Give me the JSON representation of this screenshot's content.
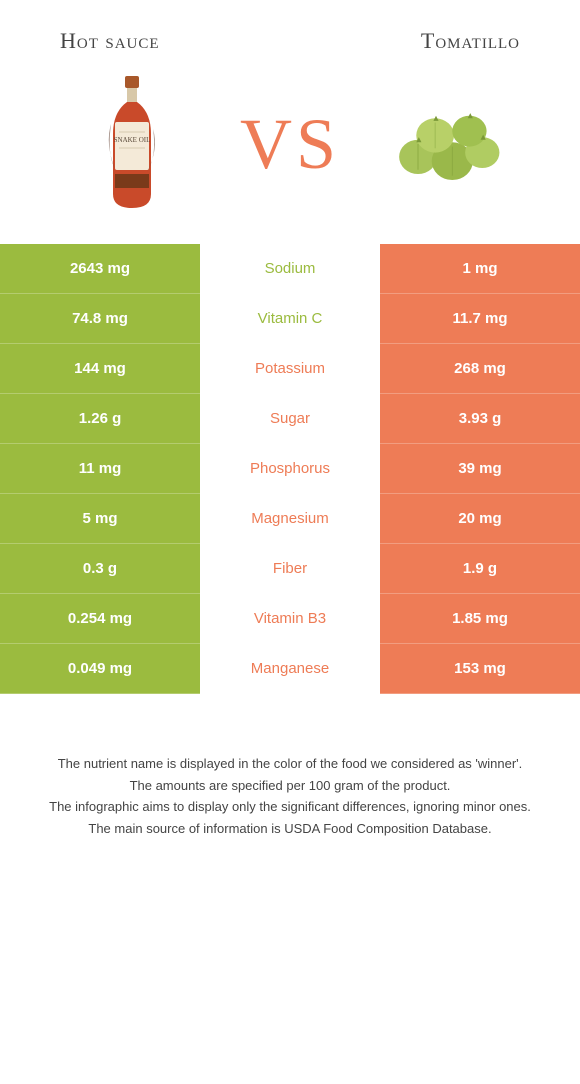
{
  "colors": {
    "left": "#9bbb3f",
    "right": "#ee7c56",
    "vs": "#ee7c56",
    "title": "#444444",
    "footnote": "#444444",
    "background": "#ffffff"
  },
  "left_food": "Hot sauce",
  "right_food": "Tomatillo",
  "vs": "VS",
  "rows": [
    {
      "left": "2643 mg",
      "label": "Sodium",
      "right": "1 mg",
      "winner": "left"
    },
    {
      "left": "74.8 mg",
      "label": "Vitamin C",
      "right": "11.7 mg",
      "winner": "left"
    },
    {
      "left": "144 mg",
      "label": "Potassium",
      "right": "268 mg",
      "winner": "right"
    },
    {
      "left": "1.26 g",
      "label": "Sugar",
      "right": "3.93 g",
      "winner": "right"
    },
    {
      "left": "11 mg",
      "label": "Phosphorus",
      "right": "39 mg",
      "winner": "right"
    },
    {
      "left": "5 mg",
      "label": "Magnesium",
      "right": "20 mg",
      "winner": "right"
    },
    {
      "left": "0.3 g",
      "label": "Fiber",
      "right": "1.9 g",
      "winner": "right"
    },
    {
      "left": "0.254 mg",
      "label": "Vitamin B3",
      "right": "1.85 mg",
      "winner": "right"
    },
    {
      "left": "0.049 mg",
      "label": "Manganese",
      "right": "153 mg",
      "winner": "right"
    }
  ],
  "footnotes": [
    "The nutrient name is displayed in the color of the food we considered as 'winner'.",
    "The amounts are specified per 100 gram of the product.",
    "The infographic aims to display only the significant differences, ignoring minor ones.",
    "The main source of information is USDA Food Composition Database."
  ]
}
